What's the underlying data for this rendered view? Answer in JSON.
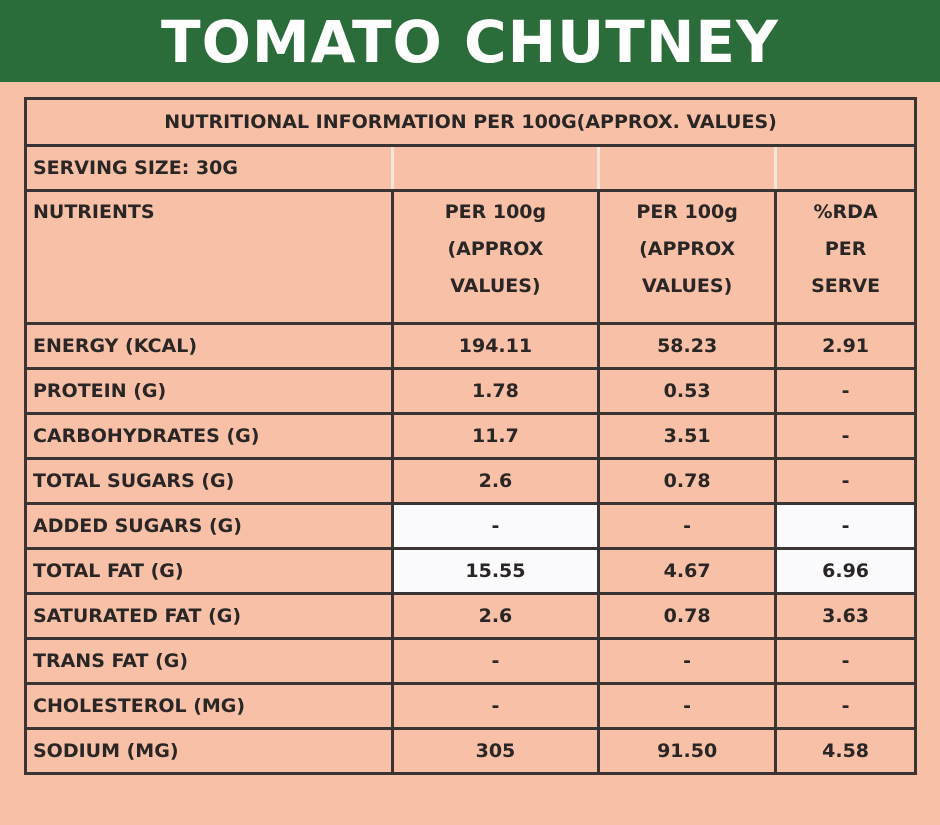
{
  "title": "TOMATO CHUTNEY",
  "table": {
    "caption": "NUTRITIONAL INFORMATION PER 100G(APPROX. VALUES)",
    "serving": "SERVING SIZE:  30G",
    "headers": [
      [
        "NUTRIENTS"
      ],
      [
        "PER 100g",
        "(APPROX",
        "VALUES)"
      ],
      [
        "PER 100g",
        "(APPROX",
        "VALUES)"
      ],
      [
        "%RDA",
        "PER",
        "SERVE"
      ]
    ],
    "rows": [
      [
        "ENERGY (KCAL)",
        "194.11",
        "58.23",
        "2.91"
      ],
      [
        "PROTEIN (G)",
        "1.78",
        "0.53",
        "-"
      ],
      [
        "CARBOHYDRATES (G)",
        "11.7",
        "3.51",
        "-"
      ],
      [
        "TOTAL SUGARS (G)",
        "2.6",
        "0.78",
        "-"
      ],
      [
        "ADDED SUGARS (G)",
        "-",
        "-",
        "-"
      ],
      [
        "TOTAL FAT (G)",
        "15.55",
        "4.67",
        "6.96"
      ],
      [
        "SATURATED FAT (G)",
        "2.6",
        "0.78",
        "3.63"
      ],
      [
        "TRANS FAT (G)",
        "-",
        "-",
        "-"
      ],
      [
        "CHOLESTEROL (MG)",
        "-",
        "-",
        "-"
      ],
      [
        "SODIUM (MG)",
        "305",
        "91.50",
        "4.58"
      ]
    ]
  },
  "colors": {
    "banner": "#2b6c3b",
    "background": "#f7c0a7",
    "highlight": "#fbfbfd"
  }
}
